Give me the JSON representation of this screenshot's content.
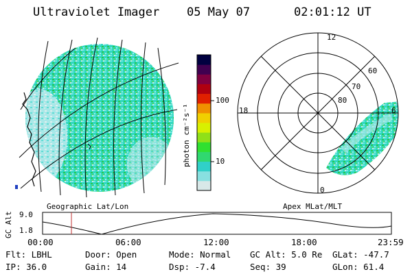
{
  "header": {
    "instrument": "Ultraviolet Imager",
    "date": "05 May 07",
    "time": "02:01:12 UT"
  },
  "colorbar": {
    "axis_label": "photon cm⁻²s⁻¹",
    "tick_100": "100",
    "tick_10": "10",
    "colors": [
      "#d8e8e8",
      "#88e0e0",
      "#30d0c8",
      "#30d870",
      "#30e030",
      "#90e018",
      "#d8f000",
      "#f0d000",
      "#f09000",
      "#e02000",
      "#b00010",
      "#800040",
      "#400050",
      "#000040"
    ]
  },
  "geo_panel": {
    "caption": "Geographic Lat/Lon"
  },
  "polar_panel": {
    "caption": "Apex MLat/MLT",
    "mlt_labels": [
      "12",
      "18",
      "6",
      "0"
    ],
    "lat_labels": [
      "60",
      "70",
      "80"
    ]
  },
  "orbit": {
    "y_label": "GC Alt",
    "y_ticks": [
      "9.0",
      "1.8"
    ],
    "x_ticks": [
      "00:00",
      "06:00",
      "12:00",
      "18:00",
      "23:59"
    ],
    "marker_color": "#c03030"
  },
  "info": {
    "filter": "Flt: LBHL",
    "door": "Door: Open",
    "mode": "Mode: Normal",
    "gc_alt": "GC Alt: 5.0 Re",
    "glat": "GLat: -47.7",
    "ip": "IP: 36.0",
    "gain": "Gain: 14",
    "dsp": "Dsp:   -7.4",
    "seq": "Seq: 39",
    "glon": "GLon:  61.4"
  }
}
